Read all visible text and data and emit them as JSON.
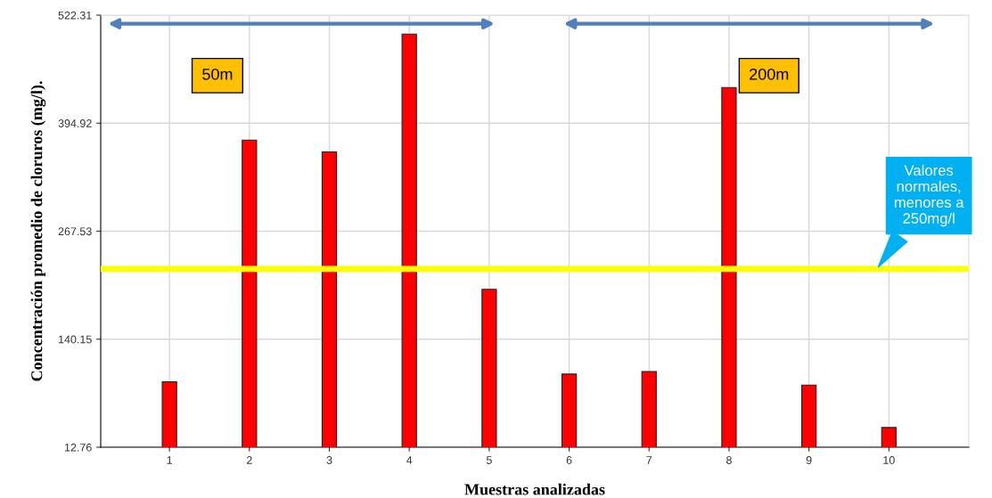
{
  "chart_data": {
    "type": "bar",
    "xlabel": "Muestras analizadas",
    "ylabel": "Concentración promedio de cloruros (mg/l).",
    "categories": [
      "1",
      "2",
      "3",
      "4",
      "5",
      "6",
      "7",
      "8",
      "9",
      "10"
    ],
    "values": [
      90,
      375,
      361,
      500,
      199,
      99,
      102,
      437,
      86,
      36
    ],
    "color": "#ff0000",
    "ylim": [
      12.76,
      522.31
    ],
    "yticks": [
      12.76,
      140.15,
      267.53,
      394.92,
      522.31
    ],
    "grid": true,
    "ref_lines": [
      {
        "axis": "y",
        "value": 223,
        "label": "Valores\nnormales,\nmenores a\n250mg/l",
        "color": "#ffff00"
      }
    ],
    "annotations": [
      "50m",
      "200m"
    ]
  }
}
